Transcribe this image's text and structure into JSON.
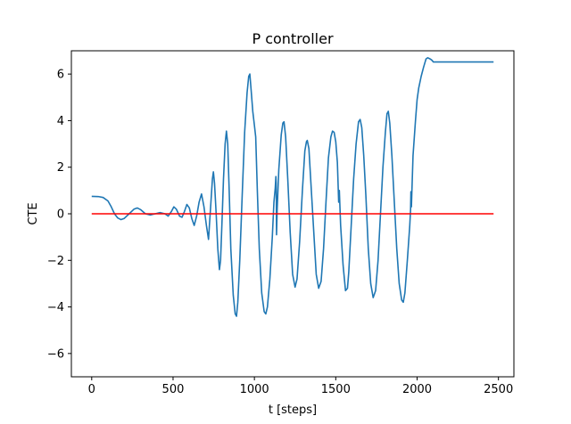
{
  "chart_data": {
    "type": "line",
    "title": "P controller",
    "xlabel": "t [steps]",
    "ylabel": "CTE",
    "xlim": [
      -125,
      2595
    ],
    "ylim": [
      -7,
      7
    ],
    "xticks": [
      0,
      500,
      1000,
      1500,
      2000,
      2500
    ],
    "yticks": [
      -6,
      -4,
      -2,
      0,
      2,
      4,
      6
    ],
    "grid": false,
    "series": [
      {
        "color": "#1f77b4",
        "points": [
          [
            0,
            0.75
          ],
          [
            40,
            0.74
          ],
          [
            70,
            0.7
          ],
          [
            100,
            0.55
          ],
          [
            120,
            0.3
          ],
          [
            140,
            0.0
          ],
          [
            160,
            -0.18
          ],
          [
            180,
            -0.25
          ],
          [
            200,
            -0.2
          ],
          [
            230,
            0.0
          ],
          [
            260,
            0.2
          ],
          [
            280,
            0.25
          ],
          [
            300,
            0.18
          ],
          [
            330,
            0.0
          ],
          [
            360,
            -0.05
          ],
          [
            390,
            0.0
          ],
          [
            420,
            0.05
          ],
          [
            450,
            0.0
          ],
          [
            470,
            -0.1
          ],
          [
            490,
            0.1
          ],
          [
            505,
            0.3
          ],
          [
            520,
            0.2
          ],
          [
            540,
            -0.1
          ],
          [
            555,
            -0.15
          ],
          [
            570,
            0.1
          ],
          [
            585,
            0.4
          ],
          [
            600,
            0.25
          ],
          [
            615,
            -0.2
          ],
          [
            630,
            -0.5
          ],
          [
            645,
            -0.1
          ],
          [
            660,
            0.5
          ],
          [
            675,
            0.85
          ],
          [
            690,
            0.3
          ],
          [
            705,
            -0.5
          ],
          [
            718,
            -1.1
          ],
          [
            730,
            0.2
          ],
          [
            742,
            1.5
          ],
          [
            748,
            1.8
          ],
          [
            755,
            1.3
          ],
          [
            765,
            0.0
          ],
          [
            775,
            -1.5
          ],
          [
            785,
            -2.4
          ],
          [
            792,
            -2.0
          ],
          [
            800,
            -0.5
          ],
          [
            810,
            1.5
          ],
          [
            820,
            3.0
          ],
          [
            828,
            3.55
          ],
          [
            836,
            3.0
          ],
          [
            845,
            1.0
          ],
          [
            855,
            -1.5
          ],
          [
            870,
            -3.5
          ],
          [
            882,
            -4.3
          ],
          [
            890,
            -4.4
          ],
          [
            898,
            -3.8
          ],
          [
            910,
            -2.0
          ],
          [
            925,
            0.8
          ],
          [
            940,
            3.5
          ],
          [
            955,
            5.2
          ],
          [
            965,
            5.9
          ],
          [
            972,
            6.0
          ],
          [
            980,
            5.3
          ],
          [
            990,
            4.4
          ],
          [
            1000,
            3.8
          ],
          [
            1008,
            3.3
          ],
          [
            1018,
            1.0
          ],
          [
            1030,
            -1.5
          ],
          [
            1045,
            -3.4
          ],
          [
            1060,
            -4.2
          ],
          [
            1070,
            -4.3
          ],
          [
            1080,
            -4.0
          ],
          [
            1095,
            -2.8
          ],
          [
            1110,
            -1.0
          ],
          [
            1120,
            0.5
          ],
          [
            1128,
            1.1
          ],
          [
            1132,
            1.6
          ],
          [
            1134,
            1.3
          ],
          [
            1136,
            -0.9
          ],
          [
            1140,
            0.2
          ],
          [
            1150,
            1.9
          ],
          [
            1165,
            3.4
          ],
          [
            1175,
            3.9
          ],
          [
            1182,
            3.95
          ],
          [
            1192,
            3.3
          ],
          [
            1205,
            1.5
          ],
          [
            1220,
            -0.8
          ],
          [
            1235,
            -2.6
          ],
          [
            1250,
            -3.15
          ],
          [
            1262,
            -2.8
          ],
          [
            1278,
            -1.2
          ],
          [
            1295,
            1.0
          ],
          [
            1310,
            2.7
          ],
          [
            1320,
            3.1
          ],
          [
            1325,
            3.15
          ],
          [
            1335,
            2.8
          ],
          [
            1350,
            1.0
          ],
          [
            1365,
            -0.8
          ],
          [
            1380,
            -2.6
          ],
          [
            1395,
            -3.2
          ],
          [
            1410,
            -2.9
          ],
          [
            1425,
            -1.5
          ],
          [
            1440,
            0.5
          ],
          [
            1455,
            2.4
          ],
          [
            1470,
            3.3
          ],
          [
            1480,
            3.55
          ],
          [
            1490,
            3.5
          ],
          [
            1500,
            3.1
          ],
          [
            1510,
            2.2
          ],
          [
            1518,
            0.5
          ],
          [
            1522,
            1.0
          ],
          [
            1530,
            -0.5
          ],
          [
            1545,
            -2.2
          ],
          [
            1560,
            -3.3
          ],
          [
            1572,
            -3.2
          ],
          [
            1580,
            -2.5
          ],
          [
            1595,
            -0.5
          ],
          [
            1610,
            1.5
          ],
          [
            1625,
            3.0
          ],
          [
            1640,
            3.95
          ],
          [
            1650,
            4.05
          ],
          [
            1660,
            3.7
          ],
          [
            1672,
            2.5
          ],
          [
            1685,
            0.8
          ],
          [
            1700,
            -1.5
          ],
          [
            1715,
            -3.0
          ],
          [
            1730,
            -3.6
          ],
          [
            1745,
            -3.3
          ],
          [
            1760,
            -2.0
          ],
          [
            1775,
            0.0
          ],
          [
            1790,
            2.0
          ],
          [
            1805,
            3.5
          ],
          [
            1815,
            4.3
          ],
          [
            1823,
            4.4
          ],
          [
            1832,
            3.9
          ],
          [
            1845,
            2.5
          ],
          [
            1860,
            0.5
          ],
          [
            1875,
            -1.5
          ],
          [
            1890,
            -3.0
          ],
          [
            1905,
            -3.7
          ],
          [
            1915,
            -3.8
          ],
          [
            1925,
            -3.4
          ],
          [
            1940,
            -2.0
          ],
          [
            1950,
            -1.0
          ],
          [
            1955,
            -0.5
          ],
          [
            1960,
            0.2
          ],
          [
            1962,
            0.95
          ],
          [
            1965,
            0.3
          ],
          [
            1975,
            2.5
          ],
          [
            1990,
            4.0
          ],
          [
            2000,
            4.9
          ],
          [
            2010,
            5.4
          ],
          [
            2025,
            5.9
          ],
          [
            2040,
            6.3
          ],
          [
            2055,
            6.65
          ],
          [
            2065,
            6.7
          ],
          [
            2080,
            6.65
          ],
          [
            2090,
            6.6
          ],
          [
            2100,
            6.52
          ],
          [
            2200,
            6.52
          ],
          [
            2300,
            6.52
          ],
          [
            2400,
            6.52
          ],
          [
            2470,
            6.52
          ]
        ]
      },
      {
        "color": "#ff0000",
        "points": [
          [
            0,
            0
          ],
          [
            2470,
            0
          ]
        ]
      }
    ]
  }
}
